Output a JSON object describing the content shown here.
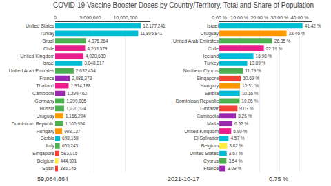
{
  "title": "COVID-19 Vaccine Booster Doses by Country/Territory, Total and Share of Population",
  "annotations": [
    "59,084,664",
    "2021-10-17",
    "0.75 %"
  ],
  "chart_data": [
    {
      "type": "bar",
      "orientation": "horizontal",
      "data_labels": true,
      "grid": true,
      "categories": [
        "United States",
        "Turkey",
        "Brazil",
        "Chile",
        "United Kingdom",
        "Israel",
        "United Arab Emirates",
        "France",
        "Thailand",
        "Cambodia",
        "Germany",
        "Russia",
        "Uruguay",
        "Dominican Republic",
        "Hungary",
        "Serbia",
        "Italy",
        "Singapore",
        "Belgium",
        "Spain"
      ],
      "values": [
        12177241,
        11805841,
        4376264,
        4263579,
        4020680,
        3848817,
        2632454,
        2086373,
        1914188,
        1399462,
        1299885,
        1270024,
        1166294,
        1100954,
        993127,
        698158,
        655243,
        583015,
        444301,
        386145
      ],
      "value_labels": [
        "12,177,241",
        "11,805,841",
        "4,376,264",
        "4,263,579",
        "4,020,680",
        "3,848,817",
        "2,632,454",
        "2,086,373",
        "1,914,188",
        "1,399,462",
        "1,299,885",
        "1,270,024",
        "1,166,294",
        "1,100,954",
        "993,127",
        "698,158",
        "655,243",
        "583,015",
        "444,301",
        "386,145"
      ],
      "colors": [
        "#00bcd4",
        "#00bcd4",
        "#4caf50",
        "#e91e8c",
        "#e91e8c",
        "#00bcd4",
        "#4caf50",
        "#9c27b0",
        "#e91e8c",
        "#9c27b0",
        "#4caf50",
        "#4caf50",
        "#ff9800",
        "#4caf50",
        "#ff9800",
        "#00bcd4",
        "#4caf50",
        "#f44336",
        "#ffeb3b",
        "#f44336"
      ],
      "xlim": [
        0,
        13500000
      ],
      "xticks": [
        0,
        {
          "value": 5000000,
          "label": "5,000,000"
        },
        {
          "value": 10000000,
          "label": "10,000,000"
        }
      ]
    },
    {
      "type": "bar",
      "orientation": "horizontal",
      "data_labels": true,
      "grid": true,
      "categories": [
        "Israel",
        "Uruguay",
        "United Arab Emirates",
        "Chile",
        "Iceland",
        "Turkey",
        "Northern Cyprus",
        "Singapore",
        "Hungary",
        "Serbia",
        "Dominican Republic",
        "Gibraltar",
        "Cambodia",
        "Malta",
        "United Kingdom",
        "El Salvador",
        "Belgium",
        "United States",
        "Cyprus",
        "France"
      ],
      "values": [
        41.42,
        33.46,
        26.35,
        22.19,
        16.98,
        13.89,
        11.79,
        10.69,
        10.31,
        10.16,
        10.05,
        9.03,
        8.26,
        6.52,
        5.9,
        4.57,
        3.82,
        3.67,
        3.54,
        3.09
      ],
      "value_labels": [
        "41.42 %",
        "33.46 %",
        "26.35 %",
        "22.19 %",
        "16.98 %",
        "13.89 %",
        "11.79 %",
        "10.69 %",
        "10.31 %",
        "10.16 %",
        "10.05 %",
        "9.03 %",
        "8.26 %",
        "6.52 %",
        "5.90 %",
        "4.57 %",
        "3.82 %",
        "3.67 %",
        "3.54 %",
        "3.09 %"
      ],
      "colors": [
        "#00bcd4",
        "#ff9800",
        "#4caf50",
        "#e91e8c",
        "#00bcd4",
        "#00bcd4",
        "#4caf50",
        "#f44336",
        "#ff9800",
        "#00bcd4",
        "#4caf50",
        "#f44336",
        "#9c27b0",
        "#9c27b0",
        "#e91e8c",
        "#00bcd4",
        "#ffeb3b",
        "#00bcd4",
        "#4caf50",
        "#9c27b0"
      ],
      "xlim": [
        0,
        46
      ],
      "xticks": [
        {
          "value": 0,
          "label": "0.00 %"
        },
        {
          "value": 10,
          "label": "10.00 %"
        },
        {
          "value": 20,
          "label": "20.00 %"
        },
        {
          "value": 30,
          "label": "30.00 %"
        },
        {
          "value": 40,
          "label": "40.00 %"
        }
      ]
    }
  ]
}
